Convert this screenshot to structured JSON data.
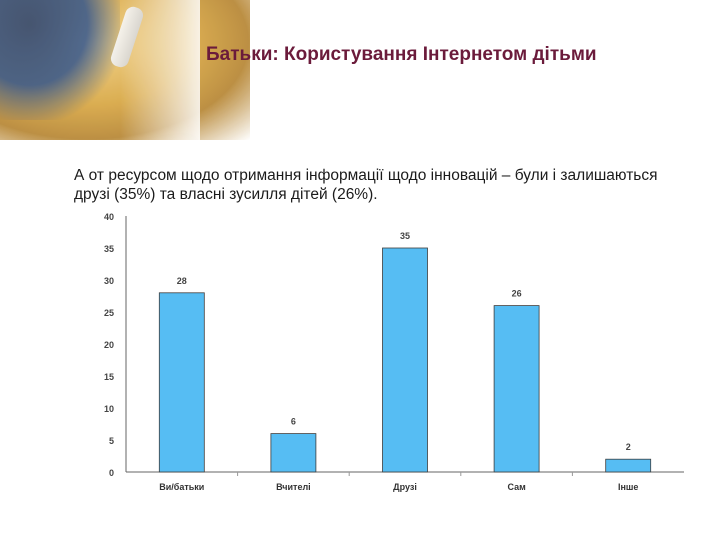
{
  "slide": {
    "title": "Батьки: Користування Інтернетом дітьми",
    "paragraph": "А от ресурсом щодо отримання інформації щодо інновацій – були і залишаються друзі (35%) та власні зусилля дітей (26%)."
  },
  "chart_data": {
    "type": "bar",
    "categories": [
      "Ви/батьки",
      "Вчителі",
      "Друзі",
      "Сам",
      "Інше"
    ],
    "values": [
      28,
      6,
      35,
      26,
      2
    ],
    "ylim": [
      0,
      40
    ],
    "yticks": [
      0,
      5,
      10,
      15,
      20,
      25,
      30,
      35,
      40
    ],
    "grid": false,
    "colors": {
      "bar_fill": "#56bdf3",
      "bar_stroke": "#3d3d3d"
    }
  }
}
